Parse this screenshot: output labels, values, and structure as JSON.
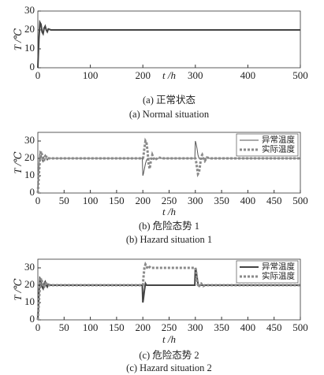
{
  "chart_data": [
    {
      "type": "line",
      "xlabel": "t /h",
      "ylabel": "T /℃",
      "caption": [
        "(a) 正常状态",
        "(a) Normal situation"
      ],
      "x": [
        0,
        2,
        4,
        6,
        8,
        10,
        12,
        14,
        16,
        18,
        20,
        25,
        30,
        40,
        500
      ],
      "series": [
        {
          "color": "#444444",
          "line_width": 2,
          "style": "solid",
          "values": [
            0,
            15,
            24,
            23,
            19,
            18,
            21,
            22,
            20,
            19,
            20.5,
            20,
            20,
            20,
            20
          ]
        }
      ],
      "xlim": [
        0,
        500
      ],
      "ylim": [
        0,
        30
      ],
      "xticks": [
        0,
        100,
        200,
        300,
        400,
        500
      ],
      "yticks": [
        0,
        10,
        20,
        30
      ]
    },
    {
      "type": "line",
      "xlabel": "t /h",
      "ylabel": "T /℃",
      "caption": [
        "(b) 危险态势 1",
        "(b) Hazard situation 1"
      ],
      "legend": "upper right",
      "x": [
        0,
        2,
        4,
        6,
        8,
        10,
        12,
        14,
        16,
        18,
        20,
        25,
        30,
        40,
        199,
        200,
        201,
        203,
        205,
        207,
        209,
        211,
        213,
        215,
        218,
        222,
        230,
        240,
        299,
        300,
        301,
        303,
        305,
        307,
        309,
        311,
        313,
        315,
        318,
        322,
        330,
        340,
        500
      ],
      "series": [
        {
          "name": "异常温度",
          "color": "#555555",
          "line_width": 1,
          "style": "solid",
          "values": [
            0,
            15,
            24,
            23,
            19,
            18,
            21,
            22,
            20,
            19,
            20.5,
            20,
            20,
            20,
            20,
            10,
            11,
            14,
            17,
            19,
            20,
            20,
            20,
            20,
            20,
            20,
            20,
            20,
            20,
            30,
            29,
            26,
            22,
            20,
            20,
            20,
            20,
            20,
            20,
            20,
            20,
            20,
            20
          ]
        },
        {
          "name": "实际温度",
          "color": "#8a8a8a",
          "line_width": 3,
          "style": "dotted",
          "values": [
            0,
            10,
            20,
            24,
            22,
            19,
            19,
            21,
            21,
            20,
            20,
            20,
            20,
            20,
            20,
            20,
            21,
            26,
            30,
            29,
            24,
            17,
            14,
            18,
            22,
            19,
            20.5,
            20,
            20,
            20,
            19,
            15,
            11,
            12,
            16,
            21,
            22,
            20,
            18.5,
            20.5,
            20,
            20,
            20
          ]
        }
      ],
      "xlim": [
        0,
        500
      ],
      "ylim": [
        0,
        35
      ],
      "xticks": [
        0,
        50,
        100,
        150,
        200,
        250,
        300,
        350,
        400,
        450,
        500
      ],
      "yticks": [
        0,
        10,
        20,
        30
      ]
    },
    {
      "type": "line",
      "xlabel": "t /h",
      "ylabel": "T /℃",
      "caption": [
        "(c) 危险态势 2",
        "(c) Hazard situation 2"
      ],
      "legend": "upper right",
      "x": [
        0,
        2,
        4,
        6,
        8,
        10,
        12,
        14,
        16,
        18,
        20,
        25,
        30,
        40,
        199,
        200,
        201,
        203,
        205,
        207,
        209,
        211,
        213,
        215,
        218,
        222,
        230,
        240,
        299,
        300,
        301,
        303,
        305,
        307,
        309,
        311,
        313,
        315,
        318,
        322,
        330,
        340,
        500
      ],
      "series": [
        {
          "name": "异常温度",
          "color": "#444444",
          "line_width": 2,
          "style": "solid",
          "values": [
            0,
            15,
            24,
            23,
            19,
            18,
            21,
            22,
            20,
            19,
            20.5,
            20,
            20,
            20,
            20,
            10,
            12,
            17,
            21,
            20,
            20,
            20,
            20,
            20,
            20,
            20,
            20,
            20,
            20,
            30,
            29,
            25,
            21,
            19.5,
            20,
            20,
            20,
            20,
            20,
            20,
            20,
            20,
            20
          ]
        },
        {
          "name": "实际温度",
          "color": "#8a8a8a",
          "line_width": 3,
          "style": "dotted",
          "values": [
            0,
            10,
            20,
            24,
            22,
            19,
            19,
            21,
            21,
            20,
            20,
            20,
            20,
            20,
            20,
            20,
            24,
            30,
            32,
            31,
            29.5,
            30,
            30.5,
            30,
            30,
            30,
            30,
            30,
            30,
            30,
            29,
            24,
            20,
            19,
            21,
            21,
            20,
            19.5,
            20,
            20,
            20,
            20,
            20
          ]
        }
      ],
      "xlim": [
        0,
        500
      ],
      "ylim": [
        0,
        35
      ],
      "xticks": [
        0,
        50,
        100,
        150,
        200,
        250,
        300,
        350,
        400,
        450,
        500
      ],
      "yticks": [
        0,
        10,
        20,
        30
      ]
    }
  ]
}
